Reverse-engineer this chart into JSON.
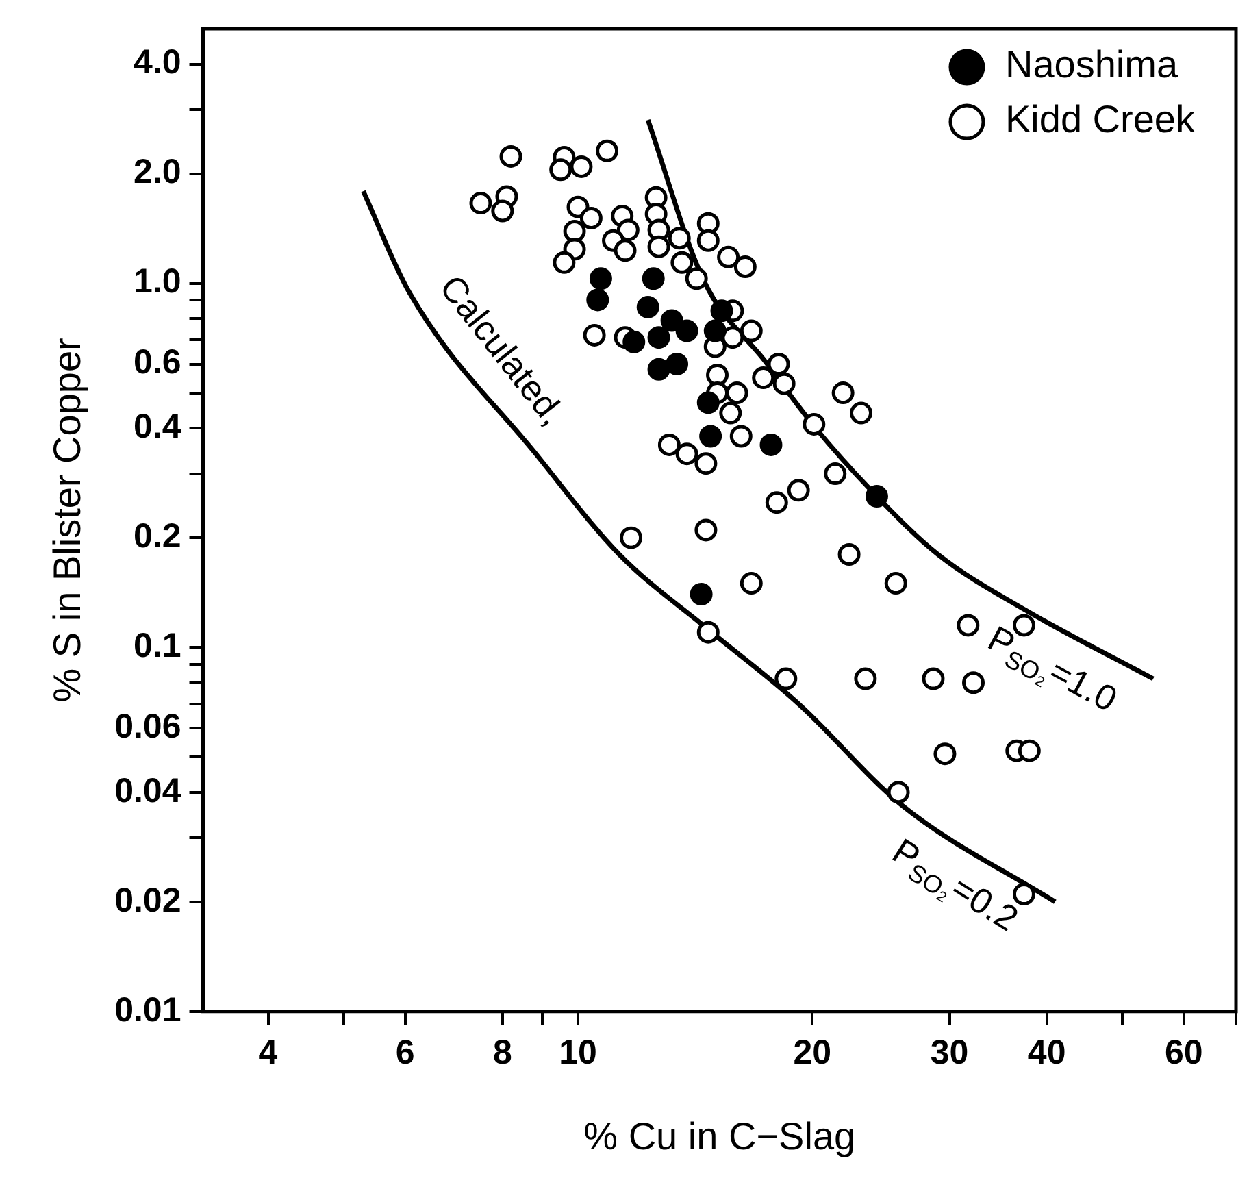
{
  "chart_data": {
    "type": "scatter",
    "xlabel": "% Cu in C−Slag",
    "ylabel": "% S in Blister Copper",
    "log": "xy",
    "grid": false,
    "legend": "top right",
    "marker": "circle",
    "xlim": [
      3.3,
      70
    ],
    "xticks": [
      4,
      {
        "value": 5,
        "label": null
      },
      6,
      8,
      {
        "value": 9,
        "label": null
      },
      10,
      20,
      30,
      40,
      {
        "value": 50,
        "label": null
      },
      60,
      {
        "value": 70,
        "label": null
      }
    ],
    "ylim": [
      0.01,
      5
    ],
    "yticks": [
      {
        "value": 4,
        "label": "4.0"
      },
      {
        "value": 3,
        "label": null
      },
      {
        "value": 2,
        "label": "2.0"
      },
      {
        "value": 1,
        "label": "1.0"
      },
      {
        "value": 0.9,
        "label": null
      },
      {
        "value": 0.8,
        "label": null
      },
      {
        "value": 0.7,
        "label": null
      },
      0.6,
      {
        "value": 0.5,
        "label": null
      },
      0.4,
      {
        "value": 0.3,
        "label": null
      },
      0.2,
      0.1,
      {
        "value": 0.09,
        "label": null
      },
      {
        "value": 0.08,
        "label": null
      },
      {
        "value": 0.07,
        "label": null
      },
      0.06,
      {
        "value": 0.05,
        "label": null
      },
      0.04,
      {
        "value": 0.03,
        "label": null
      },
      0.02,
      0.01
    ],
    "series": [
      {
        "name": "Naoshima",
        "color": "#000000",
        "x": [
          10.7,
          12.5,
          10.6,
          12.3,
          13.2,
          12.7,
          13.8,
          12.7,
          13.4,
          15.3,
          15.0,
          14.7,
          14.8,
          17.7,
          24.2,
          14.4,
          11.8
        ],
        "values": [
          1.03,
          1.03,
          0.9,
          0.86,
          0.79,
          0.71,
          0.74,
          0.58,
          0.6,
          0.84,
          0.74,
          0.47,
          0.38,
          0.36,
          0.26,
          0.14,
          0.69
        ]
      },
      {
        "name": "Kidd Creek",
        "color": "#ffffff",
        "x": [
          8.2,
          9.6,
          10.1,
          9.5,
          10.9,
          7.5,
          8.1,
          8.0,
          10.0,
          10.4,
          9.9,
          9.9,
          9.6,
          11.4,
          11.6,
          11.1,
          11.5,
          12.6,
          12.6,
          12.7,
          12.7,
          13.5,
          13.6,
          14.7,
          14.7,
          15.6,
          16.4,
          14.2,
          15.8,
          16.7,
          15.8,
          15.0,
          10.5,
          11.5,
          18.1,
          17.3,
          18.4,
          15.1,
          15.1,
          16.0,
          15.7,
          16.2,
          13.1,
          13.8,
          14.6,
          21.9,
          23.1,
          20.1,
          21.4,
          19.2,
          18.0,
          14.6,
          11.7,
          22.3,
          16.7,
          25.6,
          31.7,
          37.4,
          14.7,
          18.5,
          23.4,
          28.6,
          32.2,
          29.6,
          36.6,
          38.0,
          25.8,
          37.4
        ],
        "values": [
          2.23,
          2.22,
          2.09,
          2.05,
          2.31,
          1.66,
          1.73,
          1.58,
          1.62,
          1.51,
          1.39,
          1.24,
          1.14,
          1.53,
          1.4,
          1.31,
          1.23,
          1.72,
          1.55,
          1.4,
          1.26,
          1.33,
          1.14,
          1.46,
          1.31,
          1.18,
          1.11,
          1.03,
          0.84,
          0.74,
          0.71,
          0.67,
          0.72,
          0.71,
          0.6,
          0.55,
          0.53,
          0.56,
          0.5,
          0.5,
          0.44,
          0.38,
          0.36,
          0.34,
          0.32,
          0.5,
          0.44,
          0.41,
          0.3,
          0.27,
          0.25,
          0.21,
          0.2,
          0.18,
          0.15,
          0.15,
          0.115,
          0.115,
          0.11,
          0.082,
          0.082,
          0.082,
          0.08,
          0.051,
          0.052,
          0.052,
          0.04,
          0.021
        ]
      },
      {
        "type": "line",
        "name": "P$_{SO₂}$=1.0",
        "color": "#000000",
        "marker": "none",
        "line_style": "solid",
        "x": [
          12.3,
          14.5,
          17.4,
          20.2,
          24.2,
          29.0,
          37.7,
          54.8
        ],
        "values": [
          2.81,
          1.02,
          0.61,
          0.4,
          0.26,
          0.18,
          0.126,
          0.082
        ]
      },
      {
        "type": "line",
        "name": "P$_{SO₂}$=0.2",
        "color": "#000000",
        "marker": "none",
        "line_style": "solid",
        "x": [
          5.3,
          6.08,
          8.83,
          11.3,
          14.7,
          19.2,
          26.0,
          41.0
        ],
        "values": [
          1.79,
          0.94,
          0.34,
          0.18,
          0.112,
          0.07,
          0.037,
          0.02
        ]
      }
    ],
    "annotations": [
      "Calculated,"
    ]
  }
}
